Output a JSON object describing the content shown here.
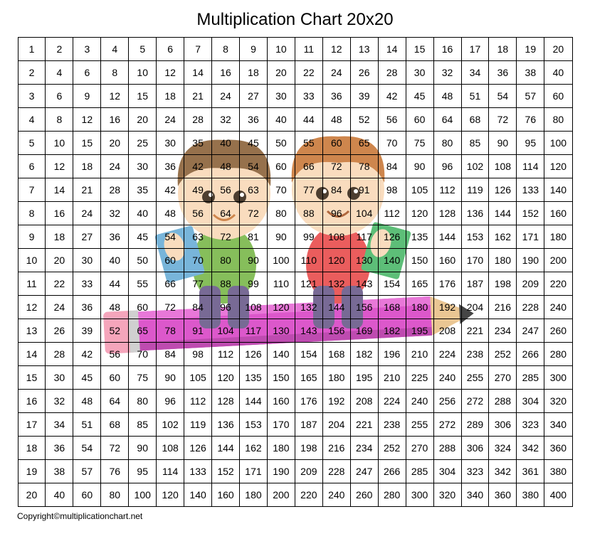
{
  "title": "Multiplication Chart 20x20",
  "copyright": "Copyright©multiplicationchart.net",
  "grid": {
    "type": "table",
    "size": 20,
    "cell_font_size": 14,
    "border_color": "#000000",
    "background_color": "#ffffff",
    "text_color": "#000000",
    "rows": [
      [
        1,
        2,
        3,
        4,
        5,
        6,
        7,
        8,
        9,
        10,
        11,
        12,
        13,
        14,
        15,
        16,
        17,
        18,
        19,
        20
      ],
      [
        2,
        4,
        6,
        8,
        10,
        12,
        14,
        16,
        18,
        20,
        22,
        24,
        26,
        28,
        30,
        32,
        34,
        36,
        38,
        40
      ],
      [
        3,
        6,
        9,
        12,
        15,
        18,
        21,
        24,
        27,
        30,
        33,
        36,
        39,
        42,
        45,
        48,
        51,
        54,
        57,
        60
      ],
      [
        4,
        8,
        12,
        16,
        20,
        24,
        28,
        32,
        36,
        40,
        44,
        48,
        52,
        56,
        60,
        64,
        68,
        72,
        76,
        80
      ],
      [
        5,
        10,
        15,
        20,
        25,
        30,
        35,
        40,
        45,
        50,
        55,
        60,
        65,
        70,
        75,
        80,
        85,
        90,
        95,
        100
      ],
      [
        6,
        12,
        18,
        24,
        30,
        36,
        42,
        48,
        54,
        60,
        66,
        72,
        78,
        84,
        90,
        96,
        102,
        108,
        114,
        120
      ],
      [
        7,
        14,
        21,
        28,
        35,
        42,
        49,
        56,
        63,
        70,
        77,
        84,
        91,
        98,
        105,
        112,
        119,
        126,
        133,
        140
      ],
      [
        8,
        16,
        24,
        32,
        40,
        48,
        56,
        64,
        72,
        80,
        88,
        96,
        104,
        112,
        120,
        128,
        136,
        144,
        152,
        160
      ],
      [
        9,
        18,
        27,
        36,
        45,
        54,
        63,
        72,
        81,
        90,
        99,
        108,
        117,
        126,
        135,
        144,
        153,
        162,
        171,
        180
      ],
      [
        10,
        20,
        30,
        40,
        50,
        60,
        70,
        80,
        90,
        100,
        110,
        120,
        130,
        140,
        150,
        160,
        170,
        180,
        190,
        200
      ],
      [
        11,
        22,
        33,
        44,
        55,
        66,
        77,
        88,
        99,
        110,
        121,
        132,
        143,
        154,
        165,
        176,
        187,
        198,
        209,
        220
      ],
      [
        12,
        24,
        36,
        48,
        60,
        72,
        84,
        96,
        108,
        120,
        132,
        144,
        156,
        168,
        180,
        192,
        204,
        216,
        228,
        240
      ],
      [
        13,
        26,
        39,
        52,
        65,
        78,
        91,
        104,
        117,
        130,
        143,
        156,
        169,
        182,
        195,
        208,
        221,
        234,
        247,
        260
      ],
      [
        14,
        28,
        42,
        56,
        70,
        84,
        98,
        112,
        126,
        140,
        154,
        168,
        182,
        196,
        210,
        224,
        238,
        252,
        266,
        280
      ],
      [
        15,
        30,
        45,
        60,
        75,
        90,
        105,
        120,
        135,
        150,
        165,
        180,
        195,
        210,
        225,
        240,
        255,
        270,
        285,
        300
      ],
      [
        16,
        32,
        48,
        64,
        80,
        96,
        112,
        128,
        144,
        160,
        176,
        192,
        208,
        224,
        240,
        256,
        272,
        288,
        304,
        320
      ],
      [
        17,
        34,
        51,
        68,
        85,
        102,
        119,
        136,
        153,
        170,
        187,
        204,
        221,
        238,
        255,
        272,
        289,
        306,
        323,
        340
      ],
      [
        18,
        36,
        54,
        72,
        90,
        108,
        126,
        144,
        162,
        180,
        198,
        216,
        234,
        252,
        270,
        288,
        306,
        324,
        342,
        360
      ],
      [
        19,
        38,
        57,
        76,
        95,
        114,
        133,
        152,
        171,
        190,
        209,
        228,
        247,
        266,
        285,
        304,
        323,
        342,
        361,
        380
      ],
      [
        20,
        40,
        60,
        80,
        100,
        120,
        140,
        160,
        180,
        200,
        220,
        240,
        260,
        280,
        300,
        320,
        340,
        360,
        380,
        400
      ]
    ]
  },
  "artwork": {
    "description": "two-cartoon-children-on-pencil",
    "colors": {
      "hair1": "#8b6239",
      "hair2": "#c97a3a",
      "skin": "#f9d9b8",
      "shirt1": "#7ab84a",
      "shirt2": "#e84c4c",
      "book1": "#6aaed6",
      "book2": "#4cb86a",
      "pencil_body": "#d946c6",
      "pencil_tip_wood": "#e8c088",
      "pencil_lead": "#333333",
      "eraser": "#f49cb4",
      "pants": "#6a5a8a"
    }
  }
}
